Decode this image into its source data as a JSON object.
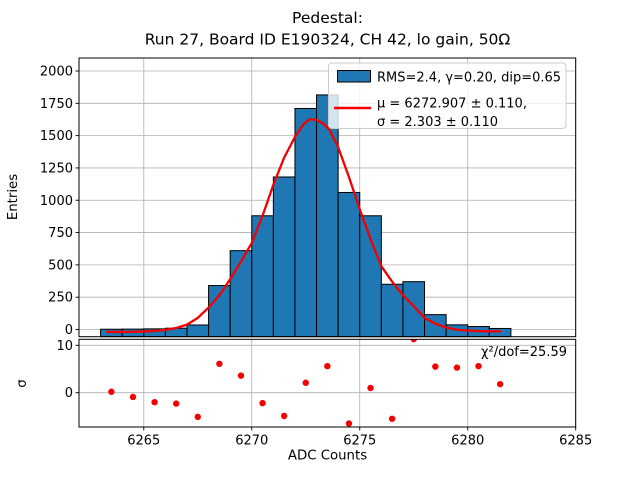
{
  "title": {
    "line1": "Pedestal:",
    "line2": "Run 27, Board ID E190324, CH 42, lo gain, 50Ω"
  },
  "axes": {
    "x": {
      "label": "ADC Counts",
      "ticks": [
        6265,
        6270,
        6275,
        6280,
        6285
      ],
      "lim": [
        6262,
        6285
      ]
    },
    "main": {
      "ylabel": "Entries",
      "ticks": [
        0,
        250,
        500,
        750,
        1000,
        1250,
        1500,
        1750,
        2000
      ],
      "lim": [
        -60,
        2105
      ],
      "grid": true
    },
    "residual": {
      "ylabel": "σ",
      "ticks": [
        0,
        10
      ],
      "lim": [
        -7.2,
        11.3
      ],
      "grid": true
    }
  },
  "legend": {
    "position": "upper right",
    "entries": [
      {
        "marker": "patch",
        "label": "RMS=2.4, γ=0.20, dip=0.65"
      },
      {
        "marker": "line",
        "label_line1": "μ = 6272.907 ± 0.110,",
        "label_line2": "σ = 2.303 ± 0.110"
      }
    ]
  },
  "annotation": {
    "chi2": "χ²/dof=25.59"
  },
  "colors": {
    "bar_fill": "#1f77b4",
    "bar_edge": "#000000",
    "fit_red": "#f40000",
    "grid": "#b0b0b0",
    "spine": "#000000",
    "legend_border": "#cccccc"
  },
  "chart_data": [
    {
      "type": "bar",
      "name": "pedestal-histogram",
      "title": "Pedestal: Run 27, Board ID E190324, CH 42, lo gain, 50Ω",
      "xlabel": "ADC Counts",
      "ylabel": "Entries",
      "bin_edges": [
        6263,
        6264,
        6265,
        6266,
        6267,
        6268,
        6269,
        6270,
        6271,
        6272,
        6273,
        6274,
        6275,
        6276,
        6277,
        6278,
        6279,
        6280,
        6281,
        6282
      ],
      "counts": [
        2,
        3,
        5,
        10,
        35,
        340,
        610,
        880,
        1180,
        1710,
        1815,
        1060,
        880,
        350,
        370,
        115,
        36,
        23,
        8
      ],
      "xlim": [
        6262,
        6285
      ],
      "ylim": [
        -60,
        2105
      ],
      "legend": "RMS=2.4, γ=0.20, dip=0.65"
    },
    {
      "type": "line",
      "name": "gaussian-fit-curve",
      "legend": "μ = 6272.907 ± 0.110, σ = 2.303 ± 0.110",
      "x": [
        6263.3,
        6264.0,
        6264.5,
        6265.0,
        6265.5,
        6266.0,
        6266.5,
        6267.0,
        6267.5,
        6268.0,
        6268.5,
        6269.0,
        6269.5,
        6270.0,
        6270.5,
        6271.0,
        6271.5,
        6272.0,
        6272.4,
        6272.7,
        6273.0,
        6273.3,
        6273.6,
        6274.0,
        6274.5,
        6275.0,
        6275.5,
        6276.0,
        6276.5,
        6277.0,
        6277.5,
        6278.0,
        6278.5,
        6279.0,
        6279.5,
        6280.0,
        6280.5,
        6281.0,
        6281.5
      ],
      "y": [
        -19,
        -19,
        -18,
        -15,
        -11,
        -3,
        12,
        38,
        90,
        170,
        265,
        390,
        525,
        670,
        880,
        1120,
        1330,
        1490,
        1590,
        1628,
        1622,
        1595,
        1545,
        1410,
        1180,
        930,
        700,
        490,
        370,
        265,
        180,
        90,
        45,
        15,
        -2,
        -8,
        -12,
        -14,
        -14
      ]
    },
    {
      "type": "scatter",
      "name": "fit-residuals",
      "ylabel": "σ",
      "annotation": "χ²/dof=25.59",
      "x": [
        6263.5,
        6264.5,
        6265.5,
        6266.5,
        6267.5,
        6268.5,
        6269.5,
        6270.5,
        6271.5,
        6272.5,
        6273.5,
        6274.5,
        6275.5,
        6276.5,
        6277.5,
        6278.5,
        6279.5,
        6280.5,
        6281.5
      ],
      "y": [
        0.2,
        -0.9,
        -2.0,
        -2.3,
        -5.1,
        6.1,
        3.6,
        -2.2,
        -4.9,
        2.1,
        5.6,
        -6.5,
        1.0,
        -5.5,
        11.3,
        5.5,
        5.3,
        5.6,
        1.8
      ]
    }
  ]
}
